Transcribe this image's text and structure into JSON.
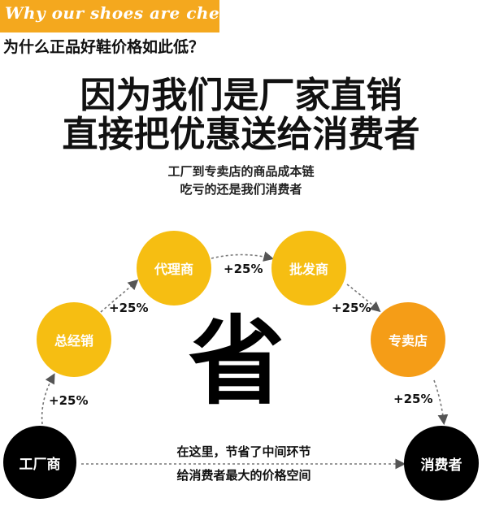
{
  "header": {
    "tagline": "Why our shoes are cheap?",
    "question": "为什么正品好鞋价格如此低？",
    "headline_line1": "因为我们是厂家直销",
    "headline_line2": "直接把优惠送给消费者",
    "subline_line1": "工厂到专卖店的商品成本链",
    "subline_line2": "吃亏的还是我们消费者"
  },
  "diagram": {
    "nodes": {
      "factory": "工厂商",
      "general_distributor": "总经销",
      "agent": "代理商",
      "wholesaler": "批发商",
      "store": "专卖店",
      "consumer": "消费者"
    },
    "markups": {
      "factory_to_general": "+25%",
      "general_to_agent": "+25%",
      "agent_to_wholesaler": "+25%",
      "wholesaler_to_store": "+25%",
      "store_to_consumer": "+25%"
    },
    "center_char": "省",
    "note_line1": "在这里，节省了中间环节",
    "note_line2": "给消费者最大的价格空间"
  },
  "colors": {
    "tagline_bg": "#f4a81e",
    "node_yellow": "#f6be12",
    "node_orange": "#f59d17",
    "node_black": "#000000"
  }
}
